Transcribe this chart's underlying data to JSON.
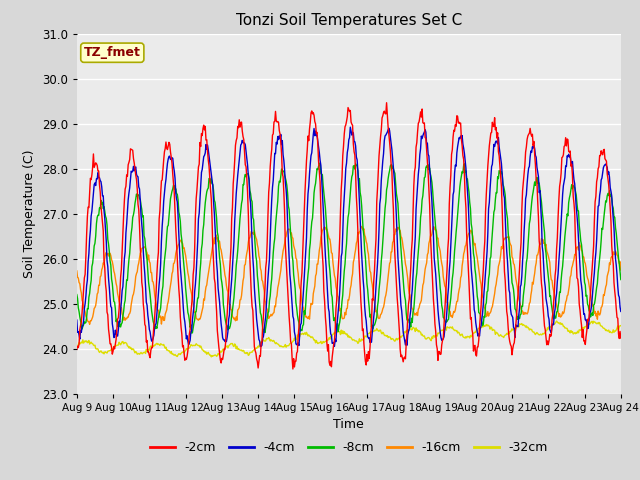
{
  "title": "Tonzi Soil Temperatures Set C",
  "xlabel": "Time",
  "ylabel": "Soil Temperature (C)",
  "ylim": [
    23.0,
    31.0
  ],
  "yticks": [
    23.0,
    24.0,
    25.0,
    26.0,
    27.0,
    28.0,
    29.0,
    30.0,
    31.0
  ],
  "x_labels": [
    "Aug 9",
    "Aug 10",
    "Aug 11",
    "Aug 12",
    "Aug 13",
    "Aug 14",
    "Aug 15",
    "Aug 16",
    "Aug 17",
    "Aug 18",
    "Aug 19",
    "Aug 20",
    "Aug 21",
    "Aug 22",
    "Aug 23",
    "Aug 24"
  ],
  "series": {
    "-2cm": {
      "color": "#ff0000",
      "linewidth": 1.0
    },
    "-4cm": {
      "color": "#0000cc",
      "linewidth": 1.0
    },
    "-8cm": {
      "color": "#00bb00",
      "linewidth": 1.0
    },
    "-16cm": {
      "color": "#ff8800",
      "linewidth": 1.0
    },
    "-32cm": {
      "color": "#dddd00",
      "linewidth": 1.0
    }
  },
  "legend_label": "TZ_fmet",
  "legend_box_facecolor": "#ffffcc",
  "legend_text_color": "#8b0000",
  "legend_edge_color": "#aaaa00",
  "bg_color": "#d8d8d8",
  "plot_bg_color": "#ebebeb",
  "grid_color": "#ffffff",
  "n_points": 721,
  "n_days": 15
}
